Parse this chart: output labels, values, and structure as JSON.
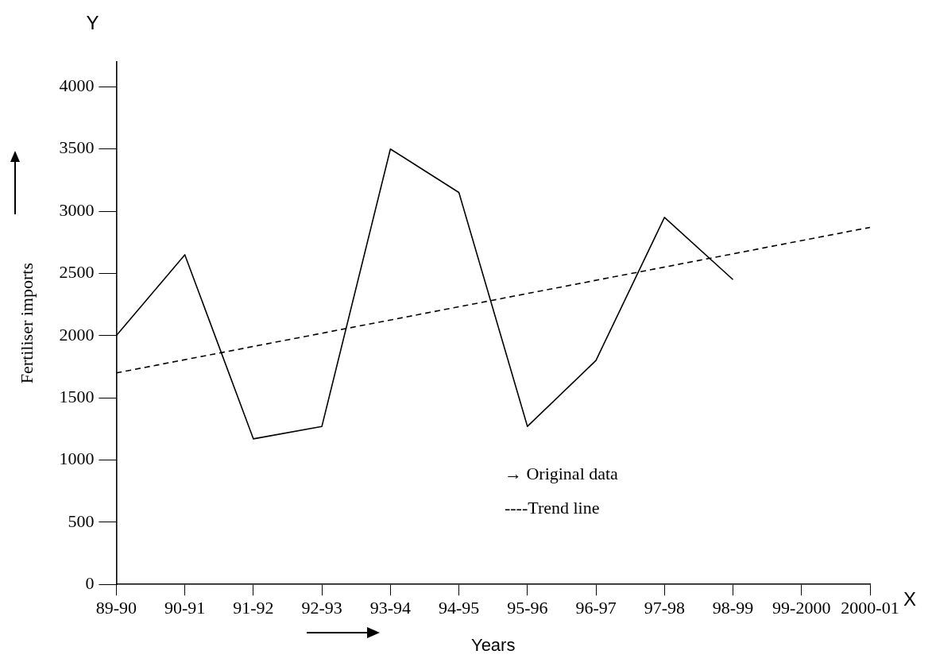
{
  "chart_data": {
    "type": "line",
    "xlabel": "Years",
    "ylabel": "Fertiliser imports",
    "categories": [
      "89-90",
      "90-91",
      "91-92",
      "92-93",
      "93-94",
      "94-95",
      "95-96",
      "96-97",
      "97-98",
      "98-99",
      "99-2000",
      "2000-01"
    ],
    "series": [
      {
        "color": "#000000",
        "line_style": "solid",
        "values": [
          2000,
          2650,
          1170,
          1270,
          3500,
          3150,
          1270,
          1800,
          2950,
          2450,
          null,
          null
        ]
      },
      {
        "color": "#000000",
        "line_style": "dashed",
        "values": [
          1700,
          null,
          null,
          null,
          null,
          null,
          null,
          null,
          null,
          null,
          null,
          2870
        ]
      }
    ],
    "ylim": [
      0,
      4200
    ],
    "yticks": [
      0,
      500,
      1000,
      1500,
      2000,
      2500,
      3000,
      3500,
      4000
    ],
    "grid": false,
    "legend": false,
    "marker": "none",
    "annotations": [
      "Y",
      "X",
      "→ Original data",
      "----Trend line"
    ]
  }
}
